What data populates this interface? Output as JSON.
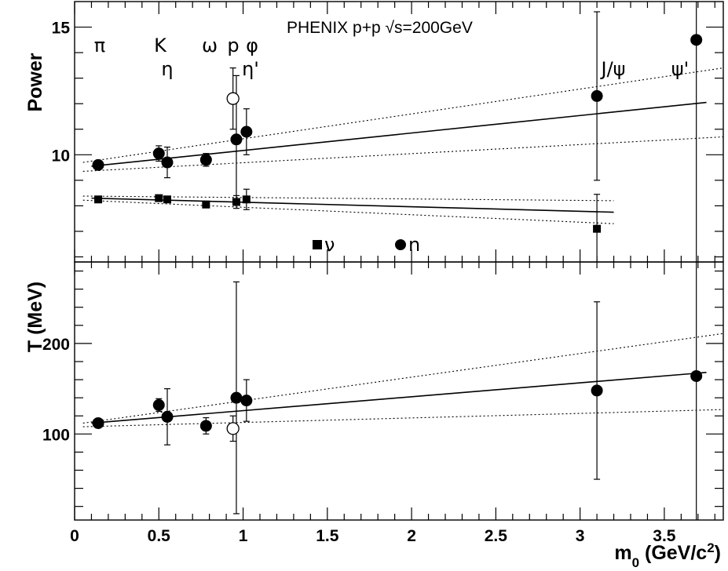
{
  "chart_data": {
    "type": "scatter",
    "title": "PHENIX p+p √s=200GeV",
    "xlabel": "m0 (GeV/c2)",
    "xticks": [
      "0",
      "0.5",
      "1",
      "1.5",
      "2",
      "2.5",
      "3",
      "3.5"
    ],
    "xlim": [
      0,
      3.85
    ],
    "particles": [
      {
        "label": "π",
        "x": 0.14
      },
      {
        "label": "K",
        "x": 0.5
      },
      {
        "label": "η",
        "x": 0.55
      },
      {
        "label": "ω",
        "x": 0.78
      },
      {
        "label": "p",
        "x": 0.94
      },
      {
        "label": "φ",
        "x": 1.02
      },
      {
        "label": "η'",
        "x": 0.96
      },
      {
        "label": "J/ψ",
        "x": 3.1
      },
      {
        "label": "ψ'",
        "x": 3.69
      }
    ],
    "legend": [
      {
        "marker": "square",
        "label": "ν"
      },
      {
        "marker": "circle",
        "label": "n"
      }
    ],
    "panels": [
      {
        "name": "power",
        "ylabel": "Power",
        "ylim": [
          5.8,
          16.0
        ],
        "yticks": [
          10,
          15
        ],
        "series": [
          {
            "marker": "circle",
            "points": [
              {
                "x": 0.14,
                "y": 9.6,
                "err": 0.15
              },
              {
                "x": 0.5,
                "y": 10.05,
                "err": 0.3
              },
              {
                "x": 0.55,
                "y": 9.7,
                "err": 0.6
              },
              {
                "x": 0.78,
                "y": 9.8,
                "err": 0.25
              },
              {
                "x": 0.96,
                "y": 10.6,
                "err": 2.5
              },
              {
                "x": 1.02,
                "y": 10.9,
                "err": 0.9
              },
              {
                "x": 3.1,
                "y": 12.3,
                "err": 3.3
              },
              {
                "x": 3.69,
                "y": 14.5,
                "err": 10
              }
            ]
          },
          {
            "marker": "circle-open",
            "points": [
              {
                "x": 0.94,
                "y": 12.2,
                "err": 1.2
              }
            ]
          },
          {
            "marker": "square",
            "points": [
              {
                "x": 0.14,
                "y": 8.25,
                "err": 0.08
              },
              {
                "x": 0.5,
                "y": 8.3,
                "err": 0.08
              },
              {
                "x": 0.55,
                "y": 8.25,
                "err": 0.1
              },
              {
                "x": 0.78,
                "y": 8.05,
                "err": 0.1
              },
              {
                "x": 0.96,
                "y": 8.15,
                "err": 0.25
              },
              {
                "x": 1.02,
                "y": 8.25,
                "err": 0.4
              },
              {
                "x": 3.1,
                "y": 7.1,
                "err": 1.35
              }
            ]
          }
        ],
        "fits": [
          {
            "style": "solid",
            "from": [
              0.1,
              9.55
            ],
            "to": [
              3.75,
              12.05
            ]
          },
          {
            "style": "dotted",
            "from": [
              0.05,
              9.7
            ],
            "to": [
              3.85,
              13.4
            ]
          },
          {
            "style": "dotted",
            "from": [
              0.05,
              9.35
            ],
            "to": [
              3.85,
              10.7
            ]
          },
          {
            "style": "solid",
            "from": [
              0.1,
              8.3
            ],
            "to": [
              3.2,
              7.75
            ]
          },
          {
            "style": "dotted",
            "from": [
              0.05,
              8.38
            ],
            "to": [
              3.2,
              8.2
            ]
          },
          {
            "style": "dotted",
            "from": [
              0.05,
              8.22
            ],
            "to": [
              3.2,
              7.3
            ]
          }
        ]
      },
      {
        "name": "temperature",
        "ylabel": "T (MeV)",
        "ylim": [
          5,
          290
        ],
        "yticks": [
          100,
          200
        ],
        "series": [
          {
            "marker": "circle",
            "points": [
              {
                "x": 0.14,
                "y": 112,
                "err": 4
              },
              {
                "x": 0.5,
                "y": 132,
                "err": 7
              },
              {
                "x": 0.55,
                "y": 119,
                "err": 31
              },
              {
                "x": 0.78,
                "y": 109,
                "err": 9
              },
              {
                "x": 0.96,
                "y": 140,
                "err": 128
              },
              {
                "x": 1.02,
                "y": 137,
                "err": 23
              },
              {
                "x": 3.1,
                "y": 148,
                "err": 98
              },
              {
                "x": 3.69,
                "y": 164,
                "err": 200
              }
            ]
          },
          {
            "marker": "circle-open",
            "points": [
              {
                "x": 0.94,
                "y": 106,
                "err": 14
              }
            ]
          }
        ],
        "fits": [
          {
            "style": "solid",
            "from": [
              0.1,
              112
            ],
            "to": [
              3.75,
              168
            ]
          },
          {
            "style": "dotted",
            "from": [
              0.05,
              112
            ],
            "to": [
              3.85,
              211
            ]
          },
          {
            "style": "dotted",
            "from": [
              0.05,
              108
            ],
            "to": [
              3.85,
              127
            ]
          }
        ]
      }
    ]
  }
}
